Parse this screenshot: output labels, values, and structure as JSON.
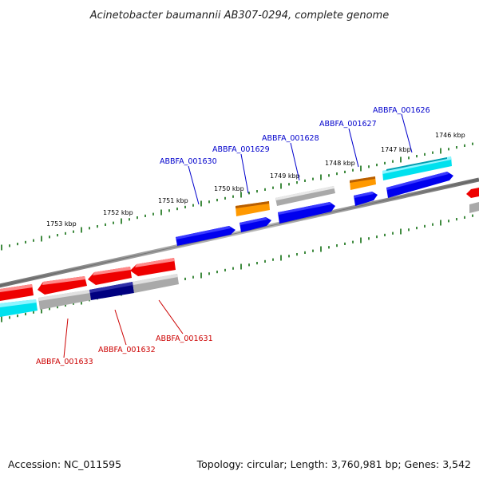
{
  "title": "Acinetobacter baumannii AB307-0294, complete genome",
  "footer": {
    "accession": "Accession: NC_011595",
    "stats": "Topology: circular; Length: 3,760,981 bp; Genes: 3,542"
  },
  "colors": {
    "forward_label": "#0000cc",
    "reverse_label": "#cc0000",
    "backbone": "#808080",
    "ticks": "#006400",
    "red": "#ff0000",
    "blue": "#0000ee",
    "orange": "#ff8c00",
    "gray": "#b0b0b0",
    "cyan": "#00e5ee",
    "navy": "#000080"
  },
  "scale_labels": [
    "1746 kbp",
    "1747 kbp",
    "1748 kbp",
    "1749 kbp",
    "1750 kbp",
    "1751 kbp",
    "1752 kbp",
    "1753 kbp"
  ],
  "gene_labels": {
    "forward": [
      "ABBFA_001626",
      "ABBFA_001627",
      "ABBFA_001628",
      "ABBFA_001629",
      "ABBFA_001630"
    ],
    "reverse": [
      "ABBFA_001631",
      "ABBFA_001632",
      "ABBFA_001633"
    ]
  }
}
